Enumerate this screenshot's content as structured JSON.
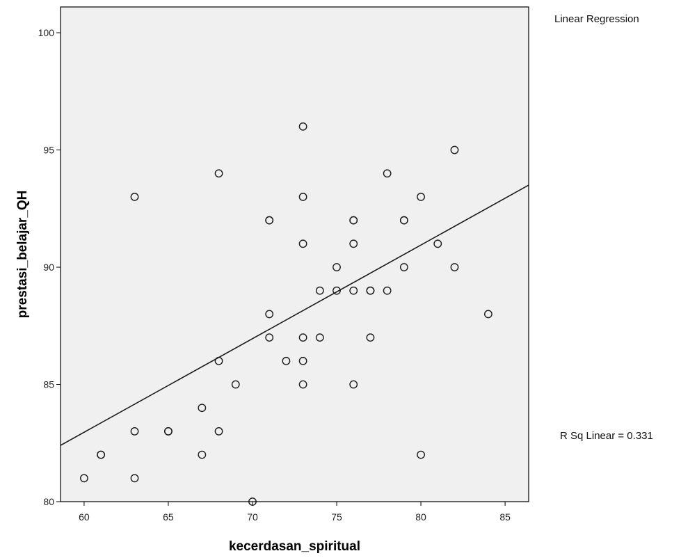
{
  "chart_data": {
    "type": "scatter",
    "xlabel": "kecerdasan_spiritual",
    "ylabel": "prestasi_belajar_QH",
    "xlim": [
      58.6,
      86.4
    ],
    "ylim": [
      80,
      101.1
    ],
    "xticks": [
      60,
      65,
      70,
      75,
      80,
      85
    ],
    "yticks": [
      80,
      85,
      90,
      95,
      100
    ],
    "fit_label": "Linear Regression",
    "r_squared_label": "R Sq Linear = 0.331",
    "fit_line": {
      "x": [
        58.6,
        86.4
      ],
      "y": [
        82.4,
        93.5
      ]
    },
    "points": [
      {
        "x": 60,
        "y": 81
      },
      {
        "x": 61,
        "y": 82
      },
      {
        "x": 61,
        "y": 82
      },
      {
        "x": 63,
        "y": 93
      },
      {
        "x": 63,
        "y": 83
      },
      {
        "x": 63,
        "y": 81
      },
      {
        "x": 65,
        "y": 83
      },
      {
        "x": 65,
        "y": 83
      },
      {
        "x": 67,
        "y": 84
      },
      {
        "x": 67,
        "y": 82
      },
      {
        "x": 68,
        "y": 94
      },
      {
        "x": 68,
        "y": 86
      },
      {
        "x": 68,
        "y": 83
      },
      {
        "x": 69,
        "y": 85
      },
      {
        "x": 70,
        "y": 80
      },
      {
        "x": 71,
        "y": 92
      },
      {
        "x": 71,
        "y": 92
      },
      {
        "x": 71,
        "y": 88
      },
      {
        "x": 71,
        "y": 87
      },
      {
        "x": 72,
        "y": 86
      },
      {
        "x": 73,
        "y": 96
      },
      {
        "x": 73,
        "y": 93
      },
      {
        "x": 73,
        "y": 91
      },
      {
        "x": 73,
        "y": 87
      },
      {
        "x": 73,
        "y": 86
      },
      {
        "x": 73,
        "y": 85
      },
      {
        "x": 74,
        "y": 89
      },
      {
        "x": 74,
        "y": 87
      },
      {
        "x": 75,
        "y": 90
      },
      {
        "x": 75,
        "y": 89
      },
      {
        "x": 76,
        "y": 92
      },
      {
        "x": 76,
        "y": 92
      },
      {
        "x": 76,
        "y": 91
      },
      {
        "x": 76,
        "y": 89
      },
      {
        "x": 76,
        "y": 85
      },
      {
        "x": 77,
        "y": 89
      },
      {
        "x": 77,
        "y": 89
      },
      {
        "x": 77,
        "y": 87
      },
      {
        "x": 78,
        "y": 94
      },
      {
        "x": 78,
        "y": 89
      },
      {
        "x": 79,
        "y": 92
      },
      {
        "x": 79,
        "y": 92
      },
      {
        "x": 79,
        "y": 90
      },
      {
        "x": 80,
        "y": 93
      },
      {
        "x": 80,
        "y": 82
      },
      {
        "x": 81,
        "y": 91
      },
      {
        "x": 82,
        "y": 95
      },
      {
        "x": 82,
        "y": 90
      },
      {
        "x": 84,
        "y": 88
      }
    ],
    "marker": "open-circle",
    "plot_background": "#f0f0f0",
    "grid": false,
    "legend": "none"
  }
}
